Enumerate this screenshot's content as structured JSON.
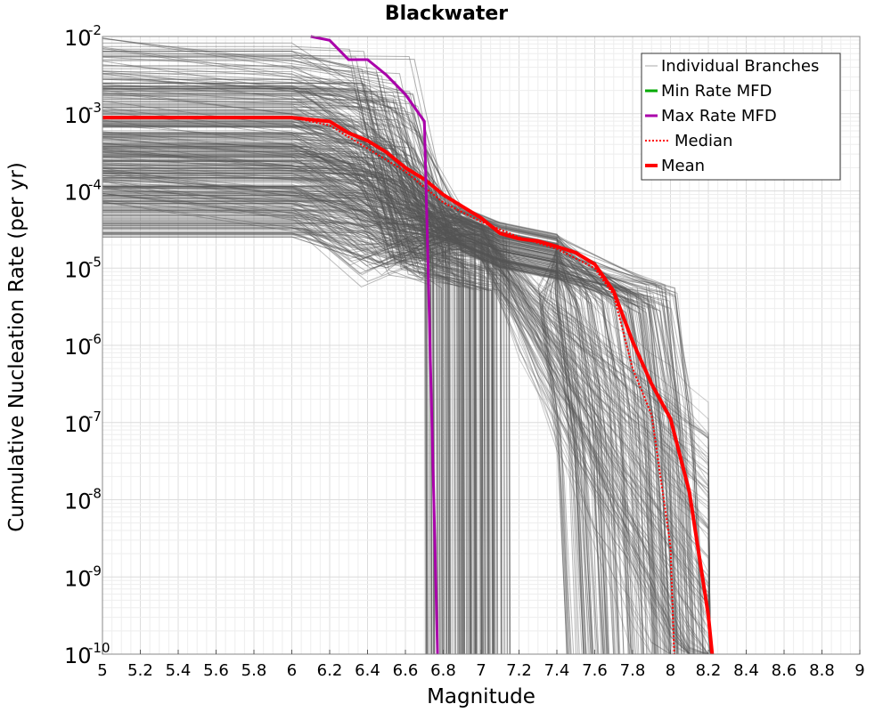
{
  "chart_data": {
    "type": "line",
    "title": "Blackwater",
    "xlabel": "Magnitude",
    "ylabel": "Cumulative Nucleation Rate (per yr)",
    "xlim": [
      5,
      9
    ],
    "ylim_log10": [
      -10,
      -2
    ],
    "y_scale": "log",
    "grid": true,
    "legend_position": "top-right",
    "x_ticks": [
      5,
      5.2,
      5.4,
      5.6,
      5.8,
      6,
      6.2,
      6.4,
      6.6,
      6.8,
      7,
      7.2,
      7.4,
      7.6,
      7.8,
      8,
      8.2,
      8.4,
      8.6,
      8.8,
      9
    ],
    "x_tick_labels": [
      "5",
      "5.2",
      "5.4",
      "5.6",
      "5.8",
      "6",
      "6.2",
      "6.4",
      "6.6",
      "6.8",
      "7",
      "7.2",
      "7.4",
      "7.6",
      "7.8",
      "8",
      "8.2",
      "8.4",
      "8.6",
      "8.8",
      "9"
    ],
    "y_tick_base": "10",
    "y_tick_exponents": [
      "-2",
      "-3",
      "-4",
      "-5",
      "-6",
      "-7",
      "-8",
      "-9",
      "-10"
    ],
    "y_tick_values_log10": [
      -2,
      -3,
      -4,
      -5,
      -6,
      -7,
      -8,
      -9,
      -10
    ],
    "colors": {
      "branches": "#555555",
      "min": "#00aa00",
      "max": "#aa00aa",
      "median": "#ff0000",
      "mean": "#ff0000",
      "grid": "#e6e6e6"
    },
    "legend": [
      {
        "key": "branches",
        "label": "Individual Branches"
      },
      {
        "key": "min",
        "label": "Min Rate MFD"
      },
      {
        "key": "max",
        "label": "Max Rate MFD"
      },
      {
        "key": "median",
        "label": "Median"
      },
      {
        "key": "mean",
        "label": "Mean"
      }
    ],
    "series": [
      {
        "name": "Mean",
        "x": [
          5.0,
          6.0,
          6.2,
          6.3,
          6.4,
          6.5,
          6.6,
          6.7,
          6.8,
          6.9,
          7.0,
          7.1,
          7.2,
          7.3,
          7.4,
          7.5,
          7.6,
          7.7,
          7.8,
          7.9,
          8.0,
          8.1,
          8.2,
          8.22
        ],
        "log10_y": [
          -3.05,
          -3.05,
          -3.1,
          -3.25,
          -3.35,
          -3.5,
          -3.7,
          -3.85,
          -4.05,
          -4.2,
          -4.35,
          -4.55,
          -4.62,
          -4.65,
          -4.72,
          -4.8,
          -4.95,
          -5.3,
          -5.95,
          -6.5,
          -6.95,
          -7.9,
          -9.5,
          -10.0
        ]
      },
      {
        "name": "Median",
        "x": [
          5.0,
          6.0,
          6.2,
          6.4,
          6.6,
          6.8,
          7.0,
          7.2,
          7.4,
          7.6,
          7.7,
          7.8,
          7.9,
          8.0,
          8.02
        ],
        "log10_y": [
          -3.05,
          -3.05,
          -3.15,
          -3.45,
          -3.75,
          -4.15,
          -4.4,
          -4.6,
          -4.75,
          -5.0,
          -5.35,
          -6.3,
          -6.9,
          -8.6,
          -10.0
        ]
      },
      {
        "name": "Max Rate MFD",
        "x": [
          6.1,
          6.2,
          6.3,
          6.4,
          6.5,
          6.6,
          6.7,
          6.72,
          6.75,
          6.77
        ],
        "log10_y": [
          -2.0,
          -2.05,
          -2.3,
          -2.3,
          -2.5,
          -2.75,
          -3.1,
          -5.0,
          -8.0,
          -10.0
        ]
      }
    ]
  }
}
